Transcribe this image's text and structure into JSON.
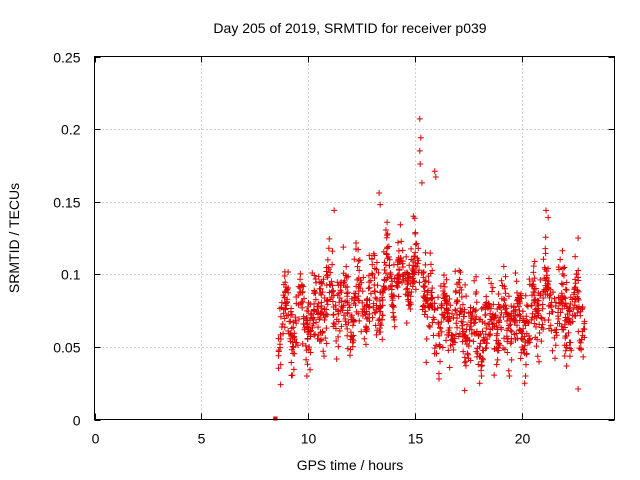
{
  "chart_data": {
    "type": "scatter",
    "title": "Day 205 of 2019, SRMTID for receiver p039",
    "xlabel": "GPS time / hours",
    "ylabel": "SRMTID / TECUs",
    "xlim": [
      0,
      24.3
    ],
    "ylim": [
      0,
      0.25
    ],
    "xticks": [
      0,
      5,
      10,
      15,
      20
    ],
    "xtick_labels": [
      "0",
      "5",
      "10",
      "15",
      "20"
    ],
    "yticks": [
      0,
      0.05,
      0.1,
      0.15,
      0.2,
      0.25
    ],
    "ytick_labels": [
      "0",
      "0.05",
      "0.1",
      "0.15",
      "0.2",
      "0.25"
    ],
    "grid": true,
    "marker": "+",
    "color": "#e00000",
    "series": [
      {
        "name": "SRMTID",
        "zero_points_x": [
          8.45,
          8.45,
          8.46
        ],
        "segments": [
          {
            "x_start": 8.6,
            "x_end": 9.5,
            "y_mean": 0.068,
            "y_spread": 0.02
          },
          {
            "x_start": 9.5,
            "x_end": 10.5,
            "y_mean": 0.07,
            "y_spread": 0.022
          },
          {
            "x_start": 10.5,
            "x_end": 11.5,
            "y_mean": 0.085,
            "y_spread": 0.025
          },
          {
            "x_start": 11.5,
            "x_end": 12.5,
            "y_mean": 0.078,
            "y_spread": 0.022
          },
          {
            "x_start": 12.5,
            "x_end": 13.5,
            "y_mean": 0.085,
            "y_spread": 0.022
          },
          {
            "x_start": 13.5,
            "x_end": 14.5,
            "y_mean": 0.098,
            "y_spread": 0.02
          },
          {
            "x_start": 14.5,
            "x_end": 15.5,
            "y_mean": 0.1,
            "y_spread": 0.02
          },
          {
            "x_start": 15.5,
            "x_end": 16.5,
            "y_mean": 0.07,
            "y_spread": 0.022
          },
          {
            "x_start": 16.5,
            "x_end": 17.5,
            "y_mean": 0.068,
            "y_spread": 0.022
          },
          {
            "x_start": 17.5,
            "x_end": 18.5,
            "y_mean": 0.062,
            "y_spread": 0.022
          },
          {
            "x_start": 18.5,
            "x_end": 19.5,
            "y_mean": 0.07,
            "y_spread": 0.022
          },
          {
            "x_start": 19.5,
            "x_end": 20.5,
            "y_mean": 0.068,
            "y_spread": 0.022
          },
          {
            "x_start": 20.5,
            "x_end": 21.5,
            "y_mean": 0.08,
            "y_spread": 0.025
          },
          {
            "x_start": 21.5,
            "x_end": 22.9,
            "y_mean": 0.075,
            "y_spread": 0.022
          }
        ],
        "outliers": [
          {
            "x": 15.2,
            "y": 0.207
          },
          {
            "x": 15.25,
            "y": 0.194
          },
          {
            "x": 15.2,
            "y": 0.185
          },
          {
            "x": 15.22,
            "y": 0.176
          },
          {
            "x": 15.3,
            "y": 0.163
          },
          {
            "x": 15.9,
            "y": 0.171
          },
          {
            "x": 15.95,
            "y": 0.167
          },
          {
            "x": 13.3,
            "y": 0.156
          },
          {
            "x": 13.35,
            "y": 0.148
          },
          {
            "x": 11.2,
            "y": 0.144
          },
          {
            "x": 21.1,
            "y": 0.144
          },
          {
            "x": 21.2,
            "y": 0.139
          },
          {
            "x": 14.9,
            "y": 0.14
          },
          {
            "x": 22.6,
            "y": 0.125
          },
          {
            "x": 8.7,
            "y": 0.024
          },
          {
            "x": 17.3,
            "y": 0.02
          },
          {
            "x": 20.1,
            "y": 0.025
          },
          {
            "x": 22.6,
            "y": 0.021
          },
          {
            "x": 16.1,
            "y": 0.028
          },
          {
            "x": 18.0,
            "y": 0.025
          }
        ]
      }
    ]
  }
}
